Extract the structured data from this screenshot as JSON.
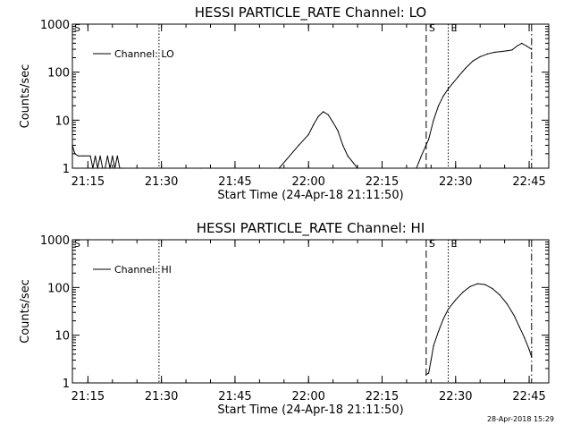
{
  "chart_data": [
    {
      "type": "line",
      "title": "HESSI PARTICLE_RATE Channel: LO",
      "xlabel": "Start Time (24-Apr-18 21:11:50)",
      "ylabel": "Counts/sec",
      "yscale": "log",
      "xlim": [
        "21:11:50",
        "22:49:00"
      ],
      "ylim": [
        1,
        1000
      ],
      "xticks": [
        "21:15",
        "21:30",
        "21:45",
        "22:00",
        "22:15",
        "22:30",
        "22:45"
      ],
      "yticks": [
        "1",
        "10",
        "100",
        "1000"
      ],
      "legend": "top-left",
      "markers": [
        {
          "label": "S",
          "time": "22:24:00",
          "style": "dashed"
        },
        {
          "label": "E",
          "time": "22:28:30",
          "style": "dotted"
        },
        {
          "label": "",
          "time": "21:29:30",
          "style": "dotted"
        },
        {
          "label": "",
          "time": "22:45:30",
          "style": "dash-dot"
        }
      ],
      "corner_label": "S",
      "series": [
        {
          "name": "Channel: LO",
          "x": [
            "21:11:50",
            "21:12:20",
            "21:13:00",
            "21:14:00",
            "21:15:30",
            "21:16:00",
            "21:16:30",
            "21:17:00",
            "21:17:30",
            "21:18:00",
            "21:18:30",
            "21:19:00",
            "21:19:30",
            "21:20:00",
            "21:20:30",
            "21:21:00",
            "21:21:30",
            "21:22:00",
            "21:38:00",
            "21:54:00",
            "21:58:00",
            "22:00:00",
            "22:01:00",
            "22:02:00",
            "22:03:00",
            "22:04:00",
            "22:05:00",
            "22:06:00",
            "22:07:00",
            "22:08:00",
            "22:10:00",
            "22:22:00",
            "22:23:00",
            "22:24:30",
            "22:25:30",
            "22:26:30",
            "22:27:30",
            "22:28:30",
            "22:29:30",
            "22:30:30",
            "22:32:00",
            "22:33:30",
            "22:35:00",
            "22:36:30",
            "22:38:00",
            "22:39:30",
            "22:40:30",
            "22:41:30",
            "22:42:30",
            "22:43:30",
            "22:44:30",
            "22:45:30"
          ],
          "y": [
            3,
            2,
            1.8,
            1.8,
            1.8,
            1,
            1.8,
            1,
            1.8,
            1,
            1,
            1.8,
            1,
            1.8,
            1,
            1.8,
            1,
            1,
            1,
            1,
            3,
            5,
            8,
            12,
            15,
            13,
            9,
            6,
            3,
            1.8,
            1,
            1,
            1.8,
            4,
            10,
            20,
            32,
            45,
            60,
            80,
            120,
            170,
            210,
            240,
            260,
            270,
            280,
            290,
            350,
            400,
            350,
            300
          ]
        }
      ]
    },
    {
      "type": "line",
      "title": "HESSI PARTICLE_RATE Channel: HI",
      "xlabel": "Start Time (24-Apr-18 21:11:50)",
      "ylabel": "Counts/sec",
      "yscale": "log",
      "xlim": [
        "21:11:50",
        "22:49:00"
      ],
      "ylim": [
        1,
        1000
      ],
      "xticks": [
        "21:15",
        "21:30",
        "21:45",
        "22:00",
        "22:15",
        "22:30",
        "22:45"
      ],
      "yticks": [
        "1",
        "10",
        "100",
        "1000"
      ],
      "legend": "top-left",
      "markers": [
        {
          "label": "S",
          "time": "22:24:00",
          "style": "dashed"
        },
        {
          "label": "E",
          "time": "22:28:30",
          "style": "dotted"
        },
        {
          "label": "",
          "time": "21:29:30",
          "style": "dotted"
        },
        {
          "label": "",
          "time": "22:45:30",
          "style": "dash-dot"
        }
      ],
      "corner_label": "S",
      "series": [
        {
          "name": "Channel: HI",
          "x": [
            "22:24:00",
            "22:24:30",
            "22:25:00",
            "22:25:30",
            "22:26:30",
            "22:27:30",
            "22:28:30",
            "22:30:00",
            "22:31:30",
            "22:33:00",
            "22:34:30",
            "22:36:00",
            "22:37:30",
            "22:39:00",
            "22:40:30",
            "22:42:00",
            "22:43:00",
            "22:44:00",
            "22:45:00",
            "22:45:30"
          ],
          "y": [
            1.5,
            1.6,
            3,
            6,
            12,
            22,
            35,
            55,
            80,
            105,
            120,
            115,
            95,
            70,
            45,
            25,
            15,
            9,
            5,
            3.5
          ]
        }
      ]
    }
  ],
  "footer": {
    "timestamp": "28-Apr-2018 15:29"
  }
}
